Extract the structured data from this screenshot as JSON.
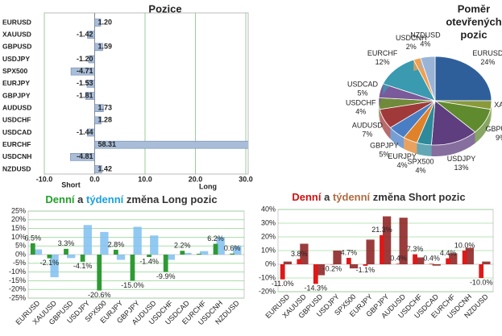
{
  "chart_data": [
    {
      "type": "hbar",
      "title": "Pozice",
      "categories": [
        "EURUSD",
        "XAUUSD",
        "GBPUSD",
        "USDJPY",
        "SPX500",
        "EURJPY",
        "GBPJPY",
        "AUDUSD",
        "USDCHF",
        "USDCAD",
        "EURCHF",
        "USDCNH",
        "NZDUSD"
      ],
      "values": [
        1.2,
        -1.42,
        1.59,
        -1.2,
        -4.71,
        -1.53,
        -1.81,
        1.73,
        1.28,
        -1.44,
        58.31,
        -4.81,
        1.42
      ],
      "value_labels": [
        "1.20",
        "-1.42",
        "1.59",
        "-1.20",
        "-4.71",
        "-1.53",
        "-1.81",
        "1.73",
        "1.28",
        "-1.44",
        "58.31",
        "-4.81",
        "1.42"
      ],
      "color": "#a9bdd8",
      "xlim": [
        -10,
        30
      ],
      "xticks": [
        {
          "value": -10,
          "label": "-10.0"
        },
        {
          "value": 0,
          "label": "0.0"
        },
        {
          "value": 10,
          "label": "10.0"
        },
        {
          "value": 20,
          "label": "20.0"
        },
        {
          "value": 30,
          "label": "30.0"
        }
      ],
      "annotations": [
        "Short",
        "Long"
      ]
    },
    {
      "type": "pie",
      "title": "Poměr otevřených pozic",
      "categories": [
        "EURUSD",
        "XAUUSD",
        "GBPUSD",
        "USDJPY",
        "SPX500",
        "EURJPY",
        "GBPJPY",
        "AUDUSD",
        "USDCHF",
        "USDCAD",
        "EURCHF",
        "USDCNH",
        "NZDUSD"
      ],
      "values": [
        24,
        3,
        9,
        13,
        4,
        4,
        5,
        7,
        4,
        5,
        12,
        2,
        4
      ],
      "value_labels": [
        "24%",
        "3%",
        "9%",
        "13%",
        "4%",
        "4%",
        "5%",
        "7%",
        "4%",
        "5%",
        "12%",
        "2%",
        "4%"
      ],
      "colors": [
        "#2f5f9a",
        "#8a9a3a",
        "#5f8a2e",
        "#5e3e7e",
        "#2d8a9a",
        "#e0822a",
        "#4a7ec4",
        "#a03a3a",
        "#6f8a3a",
        "#7a5a9a",
        "#3a9ab0",
        "#f0a050",
        "#9ab4d8"
      ]
    },
    {
      "type": "bar",
      "title_parts": [
        {
          "text": "Denní",
          "color": "#22a02a"
        },
        {
          "text": "a",
          "color": "#333333"
        },
        {
          "text": "týdenní",
          "color": "#1aa0e0"
        },
        {
          "text": "změna Long pozic",
          "color": "#333333"
        }
      ],
      "categories": [
        "EURUSD",
        "XAUUSD",
        "GBPUSD",
        "USDJPY",
        "SPX500",
        "EURJPY",
        "GBPJPY",
        "AUDUSD",
        "USDCHF",
        "USDCAD",
        "EURCHF",
        "USDCNH",
        "NZDUSD"
      ],
      "series": [
        {
          "color": "#7fc0f0",
          "values": [
            3,
            -13,
            -2,
            17,
            13,
            -3,
            16,
            11,
            -3,
            1,
            2,
            10,
            5
          ]
        },
        {
          "color": "#2e9a34",
          "values": [
            6.5,
            -2.1,
            3.3,
            -4.1,
            -20.6,
            2.8,
            -15.0,
            -1.4,
            -9.9,
            2.2,
            0.5,
            6.2,
            0.6
          ],
          "value_labels": [
            "6.5%",
            "-2.1%",
            "3.3%",
            "-4.1%",
            "-20.6%",
            "2.8%",
            "-15.0%",
            "-1.4%",
            "-9.9%",
            "2.2%",
            null,
            "6.2%",
            "0.6%"
          ]
        }
      ],
      "ylim": [
        -25,
        25
      ],
      "yticks": [
        {
          "value": -25,
          "label": "-25%"
        },
        {
          "value": -20,
          "label": "-20%"
        },
        {
          "value": -15,
          "label": "-15%"
        },
        {
          "value": -10,
          "label": "-10%"
        },
        {
          "value": -5,
          "label": "-5%"
        },
        {
          "value": 0,
          "label": "0%"
        },
        {
          "value": 5,
          "label": "5%"
        },
        {
          "value": 10,
          "label": "10%"
        },
        {
          "value": 15,
          "label": "15%"
        },
        {
          "value": 20,
          "label": "20%"
        },
        {
          "value": 25,
          "label": "25%"
        }
      ],
      "grid": true
    },
    {
      "type": "bar",
      "title_parts": [
        {
          "text": "Denní",
          "color": "#d01010"
        },
        {
          "text": "a",
          "color": "#333333"
        },
        {
          "text": "týdenní",
          "color": "#b06a40"
        },
        {
          "text": "změna Short pozic",
          "color": "#333333"
        }
      ],
      "categories": [
        "EURUSD",
        "XAUUSD",
        "GBPUSD",
        "USDJPY",
        "SPX500",
        "EURJPY",
        "GBPJPY",
        "AUDUSD",
        "USDCHF",
        "USDCAD",
        "EURCHF",
        "USDCNH",
        "NZDUSD"
      ],
      "series": [
        {
          "color": "#8a1a1a",
          "values": [
            2,
            15,
            -8,
            10,
            -3,
            18,
            35,
            34,
            5,
            -1,
            8,
            12,
            2
          ]
        },
        {
          "color": "#e01818",
          "values": [
            -11.0,
            3.8,
            -14.3,
            -0.2,
            4.7,
            -1.1,
            21.3,
            0.4,
            7.3,
            0.4,
            4.4,
            10.0,
            -10.0
          ],
          "value_labels": [
            "-11.0%",
            "3.8%",
            "-14.3%",
            "-0.2%",
            "4.7%",
            "-1.1%",
            "21.3%",
            "0.4%",
            "7.3%",
            "0.4%",
            "4.4%",
            "10.0%",
            "-10.0%"
          ]
        }
      ],
      "ylim": [
        -20,
        40
      ],
      "yticks": [
        {
          "value": -20,
          "label": "-20%"
        },
        {
          "value": -10,
          "label": "-10%"
        },
        {
          "value": 0,
          "label": "0%"
        },
        {
          "value": 10,
          "label": "10%"
        },
        {
          "value": 20,
          "label": "20%"
        },
        {
          "value": 30,
          "label": "30%"
        },
        {
          "value": 40,
          "label": "40%"
        }
      ],
      "grid": true
    }
  ]
}
